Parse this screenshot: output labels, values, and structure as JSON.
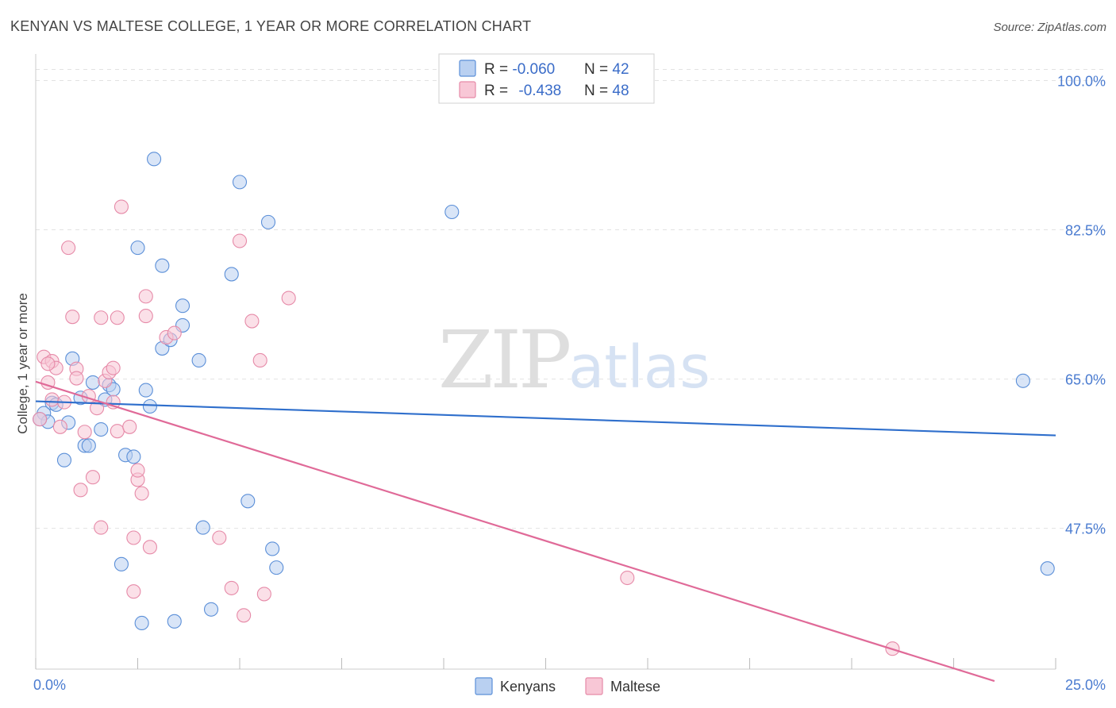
{
  "title": "KENYAN VS MALTESE COLLEGE, 1 YEAR OR MORE CORRELATION CHART",
  "source": "Source: ZipAtlas.com",
  "watermark": {
    "zip": "ZIP",
    "atlas": "atlas"
  },
  "colors": {
    "kenyans_fill": "#b9d0f1",
    "kenyans_stroke": "#5b8fd8",
    "kenyans_line": "#2f6fcc",
    "maltese_fill": "#f8c7d6",
    "maltese_stroke": "#e68aa8",
    "maltese_line": "#e06a98",
    "tick_label": "#4a7bd0",
    "grid": "#e2e2e2"
  },
  "legend": {
    "rows": [
      {
        "r_label": "R = ",
        "r_value": "-0.060",
        "n_label": "N = ",
        "n_value": "42"
      },
      {
        "r_label": "R = ",
        "r_value": "-0.438",
        "n_label": "N = ",
        "n_value": "48"
      }
    ]
  },
  "bottom_legend": [
    "Kenyans",
    "Maltese"
  ],
  "chart_data": {
    "type": "scatter",
    "title": "KENYAN VS MALTESE COLLEGE, 1 YEAR OR MORE CORRELATION CHART",
    "xlabel": "",
    "ylabel": "College, 1 year or more",
    "xlim": [
      0,
      25
    ],
    "ylim": [
      31,
      102
    ],
    "x_tick_labels": [
      "0.0%",
      "25.0%"
    ],
    "y_ticks": [
      47.5,
      65.0,
      82.5,
      100.0
    ],
    "y_tick_labels": [
      "47.5%",
      "65.0%",
      "82.5%",
      "100.0%"
    ],
    "grid": true,
    "legend_position": "top-center",
    "series": [
      {
        "name": "Kenyans",
        "r": -0.06,
        "n": 42,
        "trend": {
          "x": [
            0,
            25
          ],
          "y": [
            62.4,
            58.4
          ]
        },
        "points": [
          [
            0.2,
            61.0
          ],
          [
            0.3,
            60.0
          ],
          [
            0.4,
            62.2
          ],
          [
            0.7,
            55.5
          ],
          [
            0.8,
            59.9
          ],
          [
            0.9,
            67.4
          ],
          [
            1.1,
            62.8
          ],
          [
            1.2,
            57.2
          ],
          [
            1.3,
            57.2
          ],
          [
            1.4,
            64.6
          ],
          [
            1.6,
            59.1
          ],
          [
            1.7,
            62.6
          ],
          [
            1.8,
            64.3
          ],
          [
            1.9,
            63.8
          ],
          [
            2.1,
            43.3
          ],
          [
            2.2,
            56.1
          ],
          [
            2.4,
            55.9
          ],
          [
            2.5,
            80.4
          ],
          [
            2.6,
            36.4
          ],
          [
            2.7,
            63.7
          ],
          [
            2.8,
            61.8
          ],
          [
            2.9,
            90.8
          ],
          [
            3.1,
            68.6
          ],
          [
            3.1,
            78.3
          ],
          [
            3.3,
            69.6
          ],
          [
            3.4,
            36.6
          ],
          [
            3.6,
            71.3
          ],
          [
            3.6,
            73.6
          ],
          [
            4.0,
            67.2
          ],
          [
            4.1,
            47.6
          ],
          [
            4.3,
            38.0
          ],
          [
            4.8,
            77.3
          ],
          [
            5.0,
            88.1
          ],
          [
            5.2,
            50.7
          ],
          [
            5.7,
            83.4
          ],
          [
            5.8,
            45.1
          ],
          [
            5.9,
            42.9
          ],
          [
            10.2,
            84.6
          ],
          [
            24.2,
            64.8
          ],
          [
            24.8,
            42.8
          ],
          [
            0.1,
            60.3
          ],
          [
            0.5,
            62.0
          ]
        ]
      },
      {
        "name": "Maltese",
        "r": -0.438,
        "n": 48,
        "trend": {
          "x": [
            0,
            23.5
          ],
          "y": [
            64.7,
            29.6
          ]
        },
        "points": [
          [
            0.1,
            60.3
          ],
          [
            0.2,
            67.6
          ],
          [
            0.3,
            64.6
          ],
          [
            0.4,
            67.1
          ],
          [
            0.4,
            62.6
          ],
          [
            0.5,
            66.3
          ],
          [
            0.6,
            59.4
          ],
          [
            0.7,
            62.3
          ],
          [
            0.8,
            80.4
          ],
          [
            0.9,
            72.3
          ],
          [
            1.0,
            66.2
          ],
          [
            1.0,
            65.1
          ],
          [
            1.1,
            52.0
          ],
          [
            1.2,
            58.8
          ],
          [
            1.4,
            53.5
          ],
          [
            1.5,
            61.6
          ],
          [
            1.6,
            72.2
          ],
          [
            1.6,
            47.6
          ],
          [
            1.7,
            64.8
          ],
          [
            1.8,
            65.8
          ],
          [
            1.9,
            62.3
          ],
          [
            1.9,
            66.3
          ],
          [
            2.0,
            72.2
          ],
          [
            2.0,
            58.9
          ],
          [
            2.1,
            85.2
          ],
          [
            2.3,
            59.4
          ],
          [
            2.4,
            40.1
          ],
          [
            2.4,
            46.4
          ],
          [
            2.5,
            53.2
          ],
          [
            2.5,
            54.3
          ],
          [
            2.6,
            51.6
          ],
          [
            2.7,
            74.7
          ],
          [
            2.7,
            72.4
          ],
          [
            2.8,
            45.3
          ],
          [
            3.2,
            69.9
          ],
          [
            3.4,
            70.4
          ],
          [
            4.5,
            46.4
          ],
          [
            4.8,
            40.5
          ],
          [
            5.0,
            81.2
          ],
          [
            5.1,
            37.3
          ],
          [
            5.3,
            71.8
          ],
          [
            5.5,
            67.2
          ],
          [
            5.6,
            39.8
          ],
          [
            6.2,
            74.5
          ],
          [
            14.5,
            41.7
          ],
          [
            21.0,
            33.4
          ],
          [
            0.3,
            66.8
          ],
          [
            1.3,
            63.0
          ]
        ]
      }
    ]
  }
}
